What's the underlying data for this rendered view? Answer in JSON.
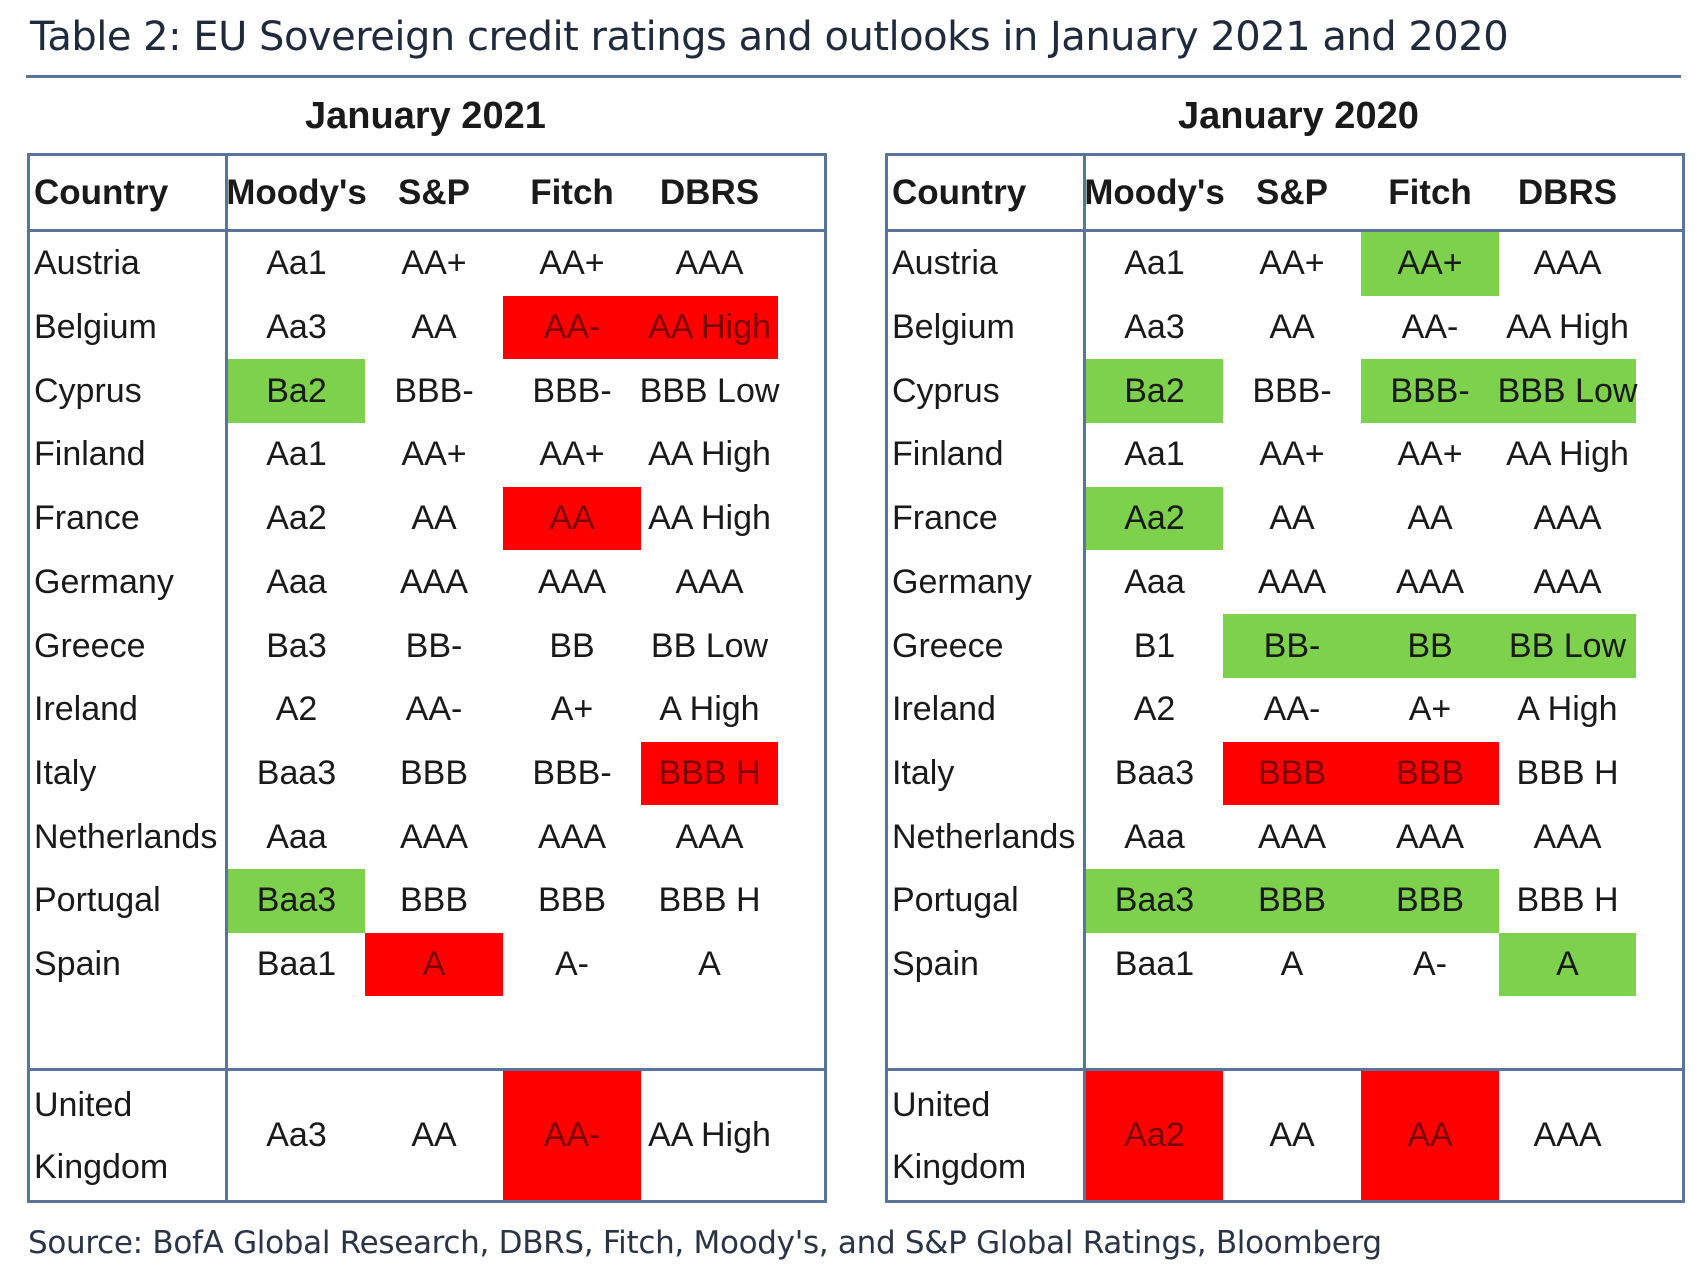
{
  "title": "Table 2: EU Sovereign credit ratings and outlooks in January 2021 and 2020",
  "source": "Source: BofA Global Research, DBRS, Fitch, Moody's, and S&P Global Ratings, Bloomberg",
  "colors": {
    "positive": "#7ed14c",
    "negative": "#ff0000",
    "border": "#5a7399"
  },
  "headers": [
    "Country",
    "Moody's",
    "S&P",
    "Fitch",
    "DBRS"
  ],
  "panels": [
    {
      "period": "January 2021",
      "rows": [
        {
          "country": "Austria",
          "ratings": [
            "Aa1",
            "AA+",
            "AA+",
            "AAA"
          ],
          "flags": [
            "",
            "",
            "",
            ""
          ]
        },
        {
          "country": "Belgium",
          "ratings": [
            "Aa3",
            "AA",
            "AA-",
            "AA High"
          ],
          "flags": [
            "",
            "",
            "red",
            "red"
          ]
        },
        {
          "country": "Cyprus",
          "ratings": [
            "Ba2",
            "BBB-",
            "BBB-",
            "BBB Low"
          ],
          "flags": [
            "green",
            "",
            "",
            ""
          ]
        },
        {
          "country": "Finland",
          "ratings": [
            "Aa1",
            "AA+",
            "AA+",
            "AA High"
          ],
          "flags": [
            "",
            "",
            "",
            ""
          ]
        },
        {
          "country": "France",
          "ratings": [
            "Aa2",
            "AA",
            "AA",
            "AA High"
          ],
          "flags": [
            "",
            "",
            "red",
            ""
          ]
        },
        {
          "country": "Germany",
          "ratings": [
            "Aaa",
            "AAA",
            "AAA",
            "AAA"
          ],
          "flags": [
            "",
            "",
            "",
            ""
          ]
        },
        {
          "country": "Greece",
          "ratings": [
            "Ba3",
            "BB-",
            "BB",
            "BB Low"
          ],
          "flags": [
            "",
            "",
            "",
            ""
          ]
        },
        {
          "country": "Ireland",
          "ratings": [
            "A2",
            "AA-",
            "A+",
            "A High"
          ],
          "flags": [
            "",
            "",
            "",
            ""
          ]
        },
        {
          "country": "Italy",
          "ratings": [
            "Baa3",
            "BBB",
            "BBB-",
            "BBB H"
          ],
          "flags": [
            "",
            "",
            "",
            "red"
          ]
        },
        {
          "country": "Netherlands",
          "ratings": [
            "Aaa",
            "AAA",
            "AAA",
            "AAA"
          ],
          "flags": [
            "",
            "",
            "",
            ""
          ]
        },
        {
          "country": "Portugal",
          "ratings": [
            "Baa3",
            "BBB",
            "BBB",
            "BBB H"
          ],
          "flags": [
            "green",
            "",
            "",
            ""
          ]
        },
        {
          "country": "Spain",
          "ratings": [
            "Baa1",
            "A",
            "A-",
            "A"
          ],
          "flags": [
            "",
            "red",
            "",
            ""
          ]
        },
        {
          "country": "United Kingdom",
          "country_lines": [
            "United",
            "Kingdom"
          ],
          "ratings": [
            "Aa3",
            "AA",
            "AA-",
            "AA High"
          ],
          "flags": [
            "",
            "",
            "red",
            ""
          ]
        }
      ]
    },
    {
      "period": "January 2020",
      "rows": [
        {
          "country": "Austria",
          "ratings": [
            "Aa1",
            "AA+",
            "AA+",
            "AAA"
          ],
          "flags": [
            "",
            "",
            "green",
            ""
          ]
        },
        {
          "country": "Belgium",
          "ratings": [
            "Aa3",
            "AA",
            "AA-",
            "AA High"
          ],
          "flags": [
            "",
            "",
            "",
            ""
          ]
        },
        {
          "country": "Cyprus",
          "ratings": [
            "Ba2",
            "BBB-",
            "BBB-",
            "BBB Low"
          ],
          "flags": [
            "green",
            "",
            "green",
            "green"
          ]
        },
        {
          "country": "Finland",
          "ratings": [
            "Aa1",
            "AA+",
            "AA+",
            "AA High"
          ],
          "flags": [
            "",
            "",
            "",
            ""
          ]
        },
        {
          "country": "France",
          "ratings": [
            "Aa2",
            "AA",
            "AA",
            "AAA"
          ],
          "flags": [
            "green",
            "",
            "",
            ""
          ]
        },
        {
          "country": "Germany",
          "ratings": [
            "Aaa",
            "AAA",
            "AAA",
            "AAA"
          ],
          "flags": [
            "",
            "",
            "",
            ""
          ]
        },
        {
          "country": "Greece",
          "ratings": [
            "B1",
            "BB-",
            "BB",
            "BB Low"
          ],
          "flags": [
            "",
            "green",
            "green",
            "green"
          ]
        },
        {
          "country": "Ireland",
          "ratings": [
            "A2",
            "AA-",
            "A+",
            "A High"
          ],
          "flags": [
            "",
            "",
            "",
            ""
          ]
        },
        {
          "country": "Italy",
          "ratings": [
            "Baa3",
            "BBB",
            "BBB",
            "BBB H"
          ],
          "flags": [
            "",
            "red",
            "red",
            ""
          ]
        },
        {
          "country": "Netherlands",
          "ratings": [
            "Aaa",
            "AAA",
            "AAA",
            "AAA"
          ],
          "flags": [
            "",
            "",
            "",
            ""
          ]
        },
        {
          "country": "Portugal",
          "ratings": [
            "Baa3",
            "BBB",
            "BBB",
            "BBB H"
          ],
          "flags": [
            "green",
            "green",
            "green",
            ""
          ]
        },
        {
          "country": "Spain",
          "ratings": [
            "Baa1",
            "A",
            "A-",
            "A"
          ],
          "flags": [
            "",
            "",
            "",
            "green"
          ]
        },
        {
          "country": "United Kingdom",
          "country_lines": [
            "United",
            "Kingdom"
          ],
          "ratings": [
            "Aa2",
            "AA",
            "AA",
            "AAA"
          ],
          "flags": [
            "red",
            "",
            "red",
            ""
          ]
        }
      ]
    }
  ]
}
